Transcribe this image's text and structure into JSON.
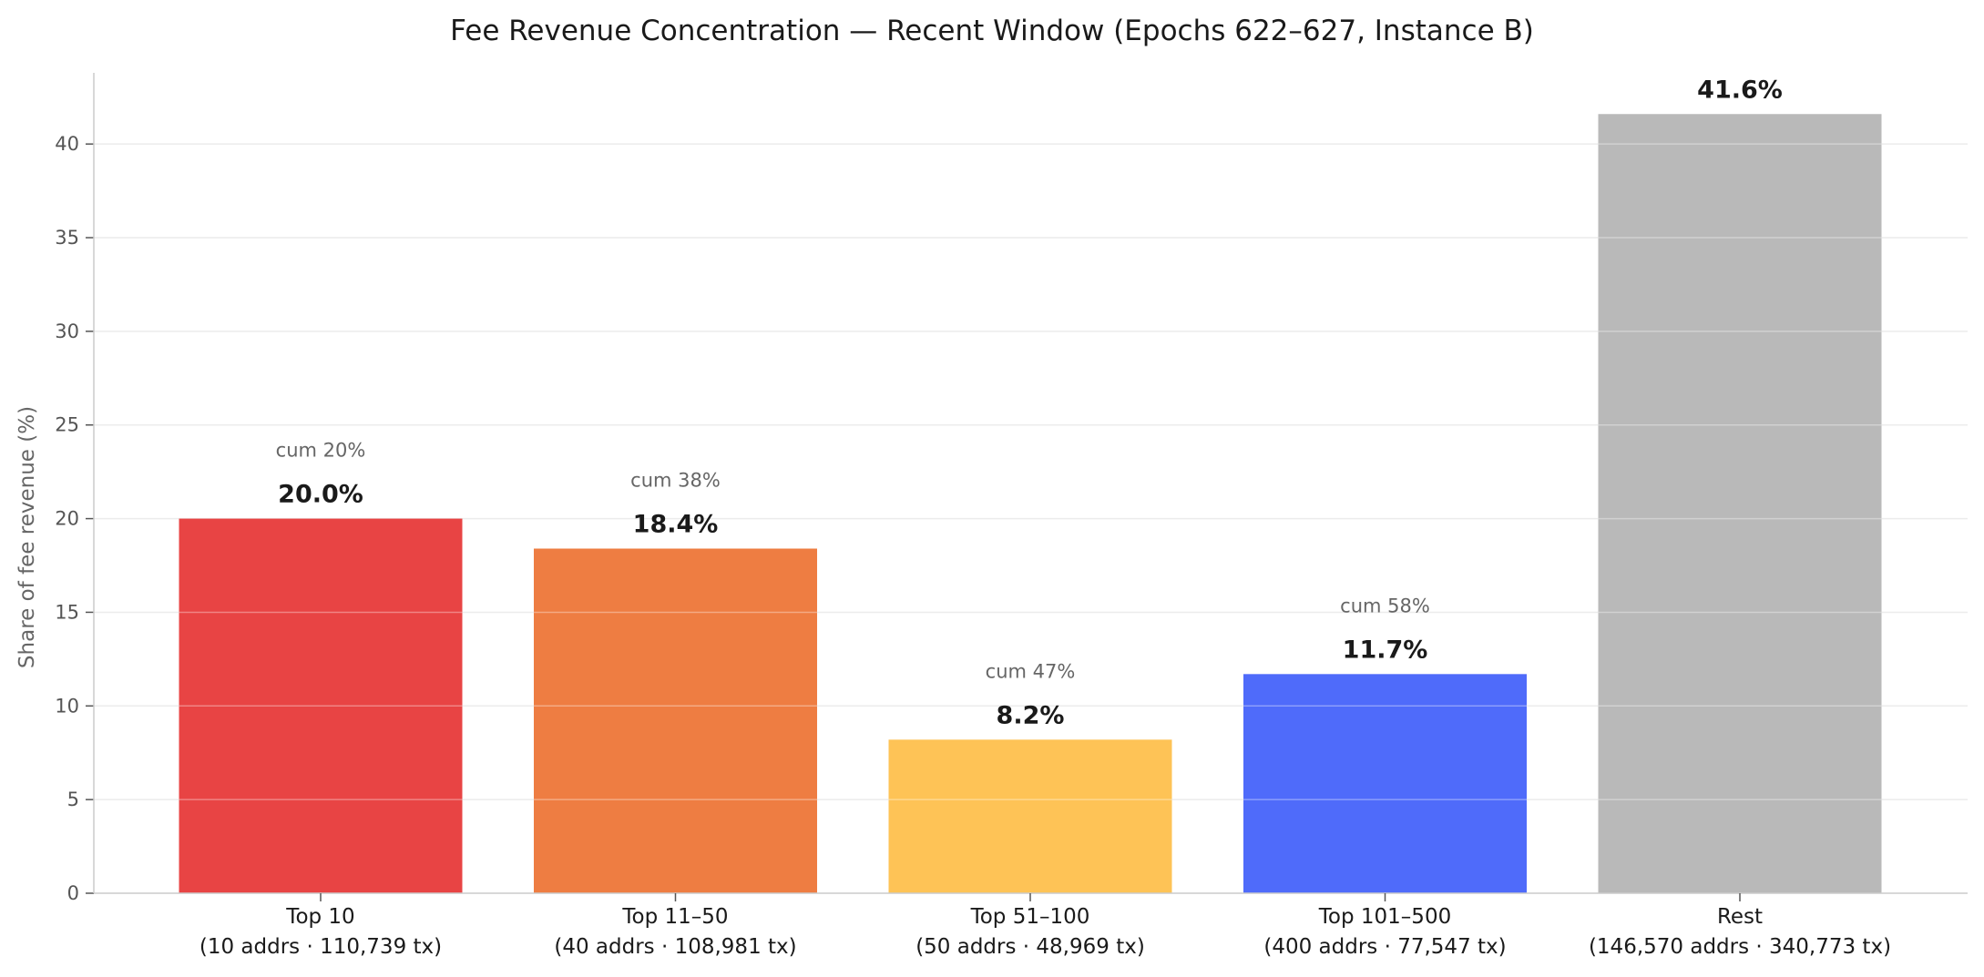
{
  "chart_data": {
    "type": "bar",
    "title": "Fee Revenue Concentration — Recent Window (Epochs 622–627, Instance B)",
    "xlabel": "",
    "ylabel": "Share of fee revenue (%)",
    "ylim": [
      0,
      43.8
    ],
    "yticks": [
      "0",
      "5",
      "10",
      "15",
      "20",
      "25",
      "30",
      "35",
      "40"
    ],
    "grid": "horizontal",
    "categories": [
      {
        "line1": "Top 10",
        "line2": "(10 addrs · 110,739 tx)"
      },
      {
        "line1": "Top 11–50",
        "line2": "(40 addrs · 108,981 tx)"
      },
      {
        "line1": "Top 51–100",
        "line2": "(50 addrs · 48,969 tx)"
      },
      {
        "line1": "Top 101–500",
        "line2": "(400 addrs · 77,547 tx)"
      },
      {
        "line1": "Rest",
        "line2": "(146,570 addrs · 340,773 tx)"
      }
    ],
    "values": [
      20.0,
      18.4,
      8.2,
      11.7,
      41.6
    ],
    "value_labels": [
      "20.0%",
      "18.4%",
      "8.2%",
      "11.7%",
      "41.6%"
    ],
    "cum_labels": [
      "cum 20%",
      "cum 38%",
      "cum 47%",
      "cum 58%",
      ""
    ],
    "colors": [
      "#e84444",
      "#ee7d42",
      "#fec356",
      "#4f6bfa",
      "#b9b9b9"
    ]
  }
}
